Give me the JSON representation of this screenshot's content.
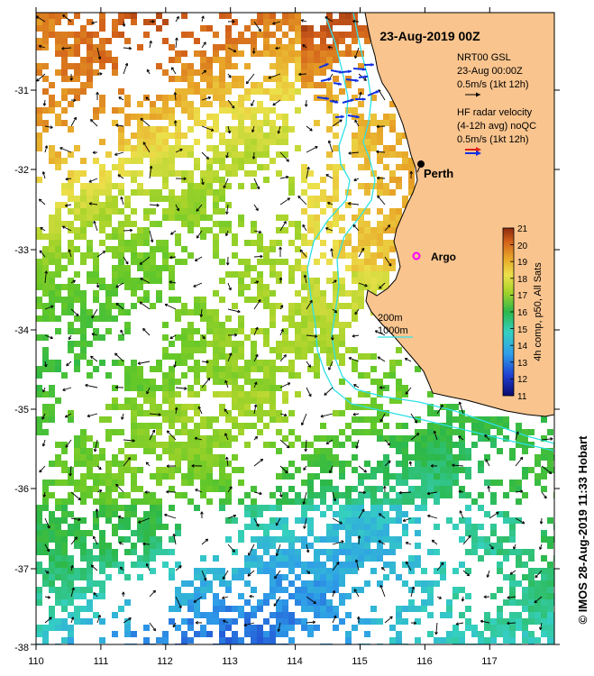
{
  "map": {
    "title": "23-Aug-2019 00Z",
    "lon_range": [
      110,
      118
    ],
    "lat_range": [
      -38,
      -30.2
    ],
    "x_ticks": [
      "110",
      "111",
      "112",
      "113",
      "114",
      "115",
      "116",
      "117"
    ],
    "y_ticks": [
      "-31",
      "-32",
      "-33",
      "-34",
      "-35",
      "-36",
      "-37",
      "-38"
    ],
    "land_color": "#f9c48e",
    "isobath_color": "#2ee0e6",
    "places": [
      {
        "name": "Perth",
        "lon": 115.86,
        "lat": -31.95,
        "marker": "black-dot"
      },
      {
        "name": "Argo",
        "lon": 115.8,
        "lat": -33.1,
        "marker": "magenta-circle"
      }
    ]
  },
  "legend": {
    "model_title": "NRT00 GSL",
    "model_time": "23-Aug 00:00Z",
    "model_scale": "0.5m/s (1kt 12h)",
    "radar_title": "HF radar velocity",
    "radar_avg": "(4-12h avg) noQC",
    "radar_scale": "0.5m/s (1kt 12h)",
    "isobath_200": "200m",
    "isobath_1000": "1000m"
  },
  "colorbar": {
    "label": "4h comp, p50, All Sats",
    "min": 11,
    "max": 21,
    "ticks": [
      "11",
      "12",
      "13",
      "14",
      "15",
      "16",
      "17",
      "18",
      "19",
      "20",
      "21"
    ]
  },
  "footer": {
    "credit": "© IMOS 28-Aug-2019 11:33 Hobart"
  }
}
